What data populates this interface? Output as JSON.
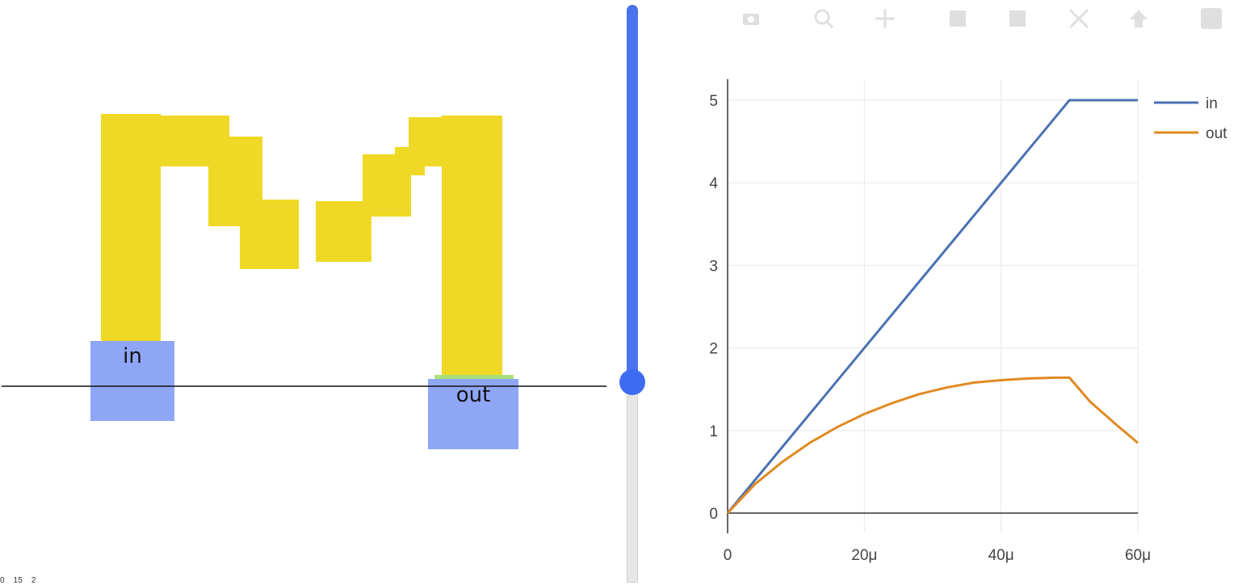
{
  "layout": {
    "pins": [
      {
        "label": "in"
      },
      {
        "label": "out"
      }
    ]
  },
  "slider": {
    "value_fraction": 0.66
  },
  "modebar": {
    "icons": [
      "camera-icon",
      "zoom-icon",
      "pan-icon",
      "zoom-in-icon",
      "zoom-out-icon",
      "autoscale-icon",
      "reset-axes-icon",
      "plotly-logo-icon"
    ]
  },
  "bottom_text": "0    15    2",
  "chart_data": {
    "type": "line",
    "xlim": [
      0,
      6e-05
    ],
    "ylim": [
      -0.2,
      5.25
    ],
    "x_ticks": [
      0,
      2e-05,
      4e-05,
      6e-05
    ],
    "x_tick_labels": [
      "0",
      "20μ",
      "40μ",
      "60μ"
    ],
    "y_ticks": [
      0,
      1,
      2,
      3,
      4,
      5
    ],
    "y_tick_labels": [
      "0",
      "1",
      "2",
      "3",
      "4",
      "5"
    ],
    "grid": true,
    "legend_position": "top-right",
    "series": [
      {
        "name": "in",
        "color": "#4a72b3",
        "x": [
          0,
          5e-05,
          6e-05
        ],
        "y": [
          0,
          5,
          5
        ]
      },
      {
        "name": "out",
        "color": "#e08a22",
        "x": [
          0,
          4e-06,
          8e-06,
          1.2e-05,
          1.6e-05,
          2e-05,
          2.4e-05,
          2.8e-05,
          3.2e-05,
          3.6e-05,
          4e-05,
          4.4e-05,
          4.8e-05,
          5e-05,
          5.3e-05,
          5.7e-05,
          6e-05
        ],
        "y": [
          0,
          0.35,
          0.62,
          0.85,
          1.04,
          1.2,
          1.33,
          1.44,
          1.52,
          1.58,
          1.61,
          1.63,
          1.64,
          1.64,
          1.35,
          1.06,
          0.85
        ]
      }
    ]
  }
}
